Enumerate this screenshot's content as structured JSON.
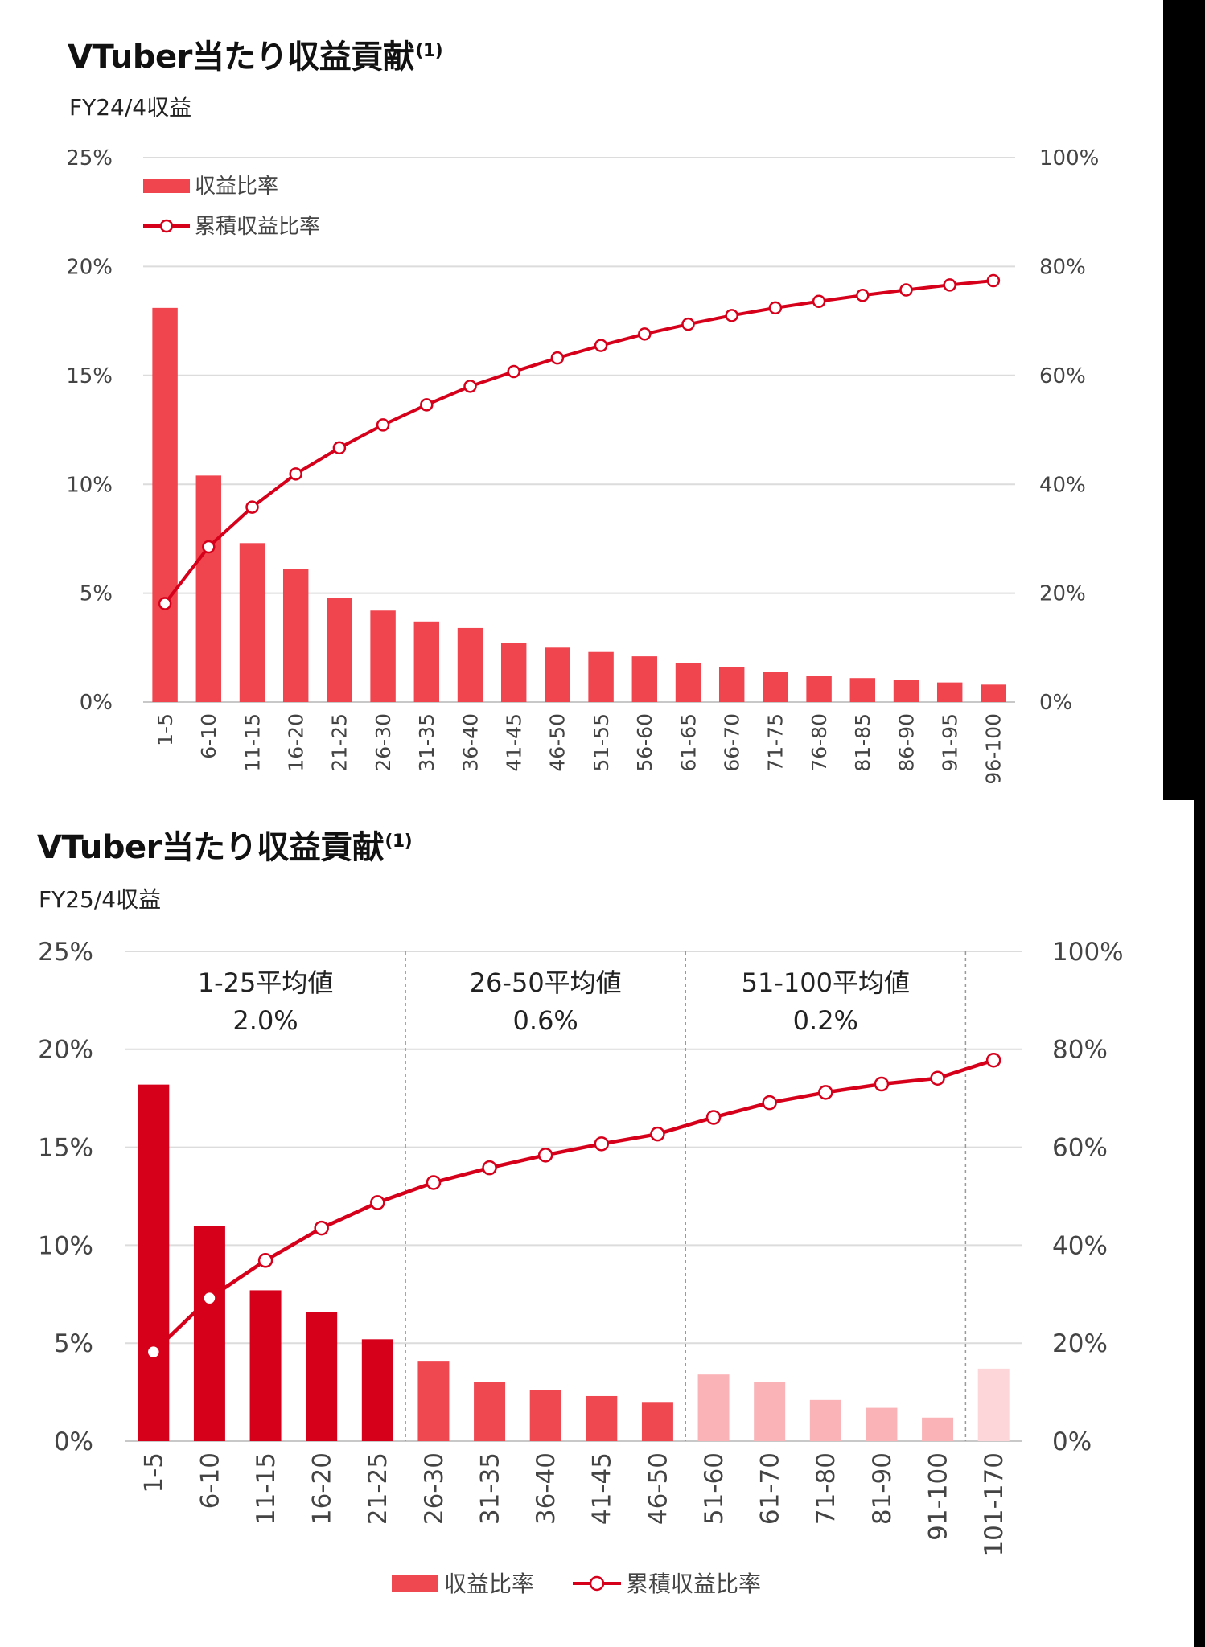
{
  "chart_data": [
    {
      "type": "bar",
      "title": "VTuber当たり収益貢献",
      "title_note": "(1)",
      "subtitle": "FY24/4収益",
      "categories": [
        "1-5",
        "6-10",
        "11-15",
        "16-20",
        "21-25",
        "26-30",
        "31-35",
        "36-40",
        "41-45",
        "46-50",
        "51-55",
        "56-60",
        "61-65",
        "66-70",
        "71-75",
        "76-80",
        "81-85",
        "86-90",
        "91-95",
        "96-100"
      ],
      "series": [
        {
          "name": "収益比率",
          "type": "bar",
          "axis": "left",
          "color": "#f0444e",
          "values": [
            18.1,
            10.4,
            7.3,
            6.1,
            4.8,
            4.2,
            3.7,
            3.4,
            2.7,
            2.5,
            2.3,
            2.1,
            1.8,
            1.6,
            1.4,
            1.2,
            1.1,
            1.0,
            0.9,
            0.8
          ]
        },
        {
          "name": "累積収益比率",
          "type": "line",
          "axis": "right",
          "color": "#d7001b",
          "values": [
            18.1,
            28.5,
            35.8,
            41.9,
            46.7,
            50.9,
            54.6,
            58.0,
            60.7,
            63.2,
            65.5,
            67.6,
            69.4,
            71.0,
            72.4,
            73.6,
            74.7,
            75.7,
            76.6,
            77.4
          ]
        }
      ],
      "y_left": {
        "ticks": [
          "25%",
          "20%",
          "15%",
          "10%",
          "5%",
          "0%"
        ],
        "ylim": [
          0,
          25
        ]
      },
      "y_right": {
        "ticks": [
          "100%",
          "80%",
          "60%",
          "40%",
          "20%",
          "0%"
        ],
        "ylim": [
          0,
          100
        ]
      },
      "grid": true,
      "legend_position": "top-left"
    },
    {
      "type": "bar",
      "title": "VTuber当たり収益貢献",
      "title_note": "(1)",
      "subtitle": "FY25/4収益",
      "categories": [
        "1-5",
        "6-10",
        "11-15",
        "16-20",
        "21-25",
        "26-30",
        "31-35",
        "36-40",
        "41-45",
        "46-50",
        "51-60",
        "61-70",
        "71-80",
        "81-90",
        "91-100",
        "101-170"
      ],
      "bar_colors": [
        "#d7001b",
        "#d7001b",
        "#d7001b",
        "#d7001b",
        "#d7001b",
        "#ef4851",
        "#ef4851",
        "#ef4851",
        "#ef4851",
        "#ef4851",
        "#fab4b8",
        "#fab4b8",
        "#fab4b8",
        "#fab4b8",
        "#fab4b8",
        "#fcd6d8"
      ],
      "series": [
        {
          "name": "収益比率",
          "type": "bar",
          "axis": "left",
          "color": "#ef4851",
          "values": [
            18.2,
            11.0,
            7.7,
            6.6,
            5.2,
            4.1,
            3.0,
            2.6,
            2.3,
            2.0,
            3.4,
            3.0,
            2.1,
            1.7,
            1.2,
            3.7
          ]
        },
        {
          "name": "累積収益比率",
          "type": "line",
          "axis": "right",
          "color": "#d7001b",
          "values": [
            18.2,
            29.2,
            36.9,
            43.5,
            48.7,
            52.8,
            55.8,
            58.4,
            60.7,
            62.7,
            66.1,
            69.1,
            71.2,
            72.9,
            74.1,
            77.8
          ]
        }
      ],
      "y_left": {
        "ticks": [
          "25%",
          "20%",
          "15%",
          "10%",
          "5%",
          "0%"
        ],
        "ylim": [
          0,
          25
        ]
      },
      "y_right": {
        "ticks": [
          "100%",
          "80%",
          "60%",
          "40%",
          "20%",
          "0%"
        ],
        "ylim": [
          0,
          100
        ]
      },
      "grid": true,
      "group_dividers_after": [
        4,
        9,
        14
      ],
      "group_annotations": [
        {
          "label": "1-25平均値",
          "value": "2.0%"
        },
        {
          "label": "26-50平均値",
          "value": "0.6%"
        },
        {
          "label": "51-100平均値",
          "value": "0.2%"
        }
      ],
      "legend_position": "bottom"
    }
  ]
}
